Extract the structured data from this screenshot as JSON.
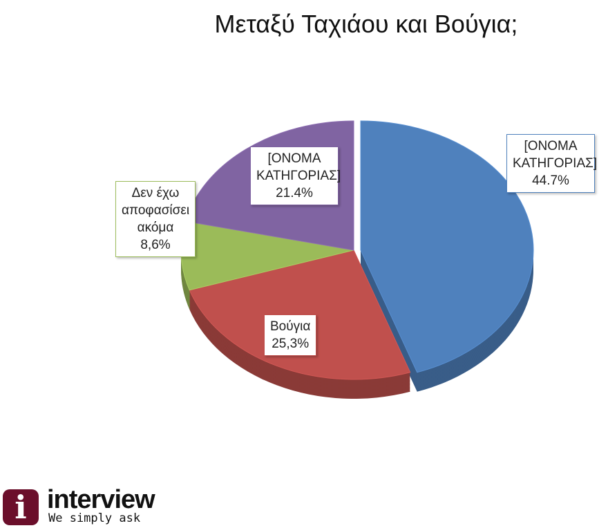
{
  "chart_data": {
    "type": "pie",
    "title": "Μεταξύ Ταχιάου και Βούγια;",
    "style": "3d-exploded",
    "slices": [
      {
        "label": "[ΟΝΟΜΑ ΚΑΤΗΓΟΡΙΑΣ]",
        "value_text": "44.7%",
        "value": 44.7,
        "color": "#4f81bd"
      },
      {
        "label": "Βούγια",
        "value_text": "25,3%",
        "value": 25.3,
        "color": "#c0504d"
      },
      {
        "label": "Δεν έχω αποφασίσει ακόμα",
        "value_text": "8,6%",
        "value": 8.6,
        "color": "#9bbb59"
      },
      {
        "label": "[ΟΝΟΜΑ ΚΑΤΗΓΟΡΙΑΣ]",
        "value_text": "21.4%",
        "value": 21.4,
        "color": "#8064a2"
      }
    ]
  },
  "logo": {
    "name": "interview",
    "tagline": "We simply ask",
    "mark": "i",
    "color": "#6b0f2b"
  }
}
